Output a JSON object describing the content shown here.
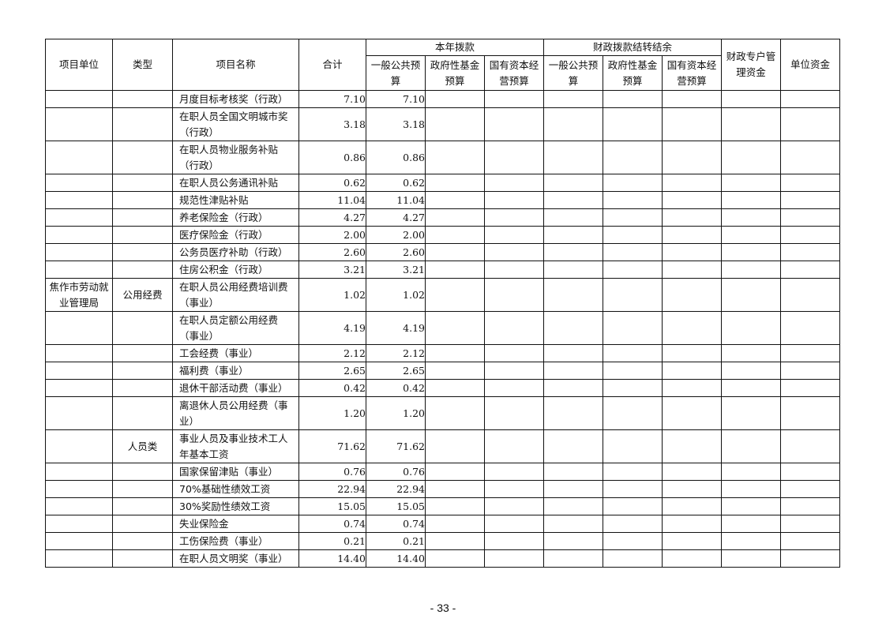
{
  "header": {
    "unit": "项目单位",
    "type": "类型",
    "name": "项目名称",
    "total": "合计",
    "group_current": "本年拨款",
    "group_carryover": "财政拨款结转结余",
    "general_budget": "一般公共预算",
    "gov_fund_budget": "政府性基金预算",
    "state_capital_budget": "国有资本经营预算",
    "carry_general_budget": "一般公共预算",
    "carry_gov_fund_budget": "政府性基金预算",
    "carry_state_capital_budget": "国有资本经营预算",
    "special_mgmt_fund": "财政专户管理资金",
    "unit_fund": "单位资金"
  },
  "rows": [
    {
      "unit": "",
      "type": "",
      "name": "月度目标考核奖（行政）",
      "total": "7.10",
      "general": "7.10"
    },
    {
      "unit": "",
      "type": "",
      "name": "在职人员全国文明城市奖（行政）",
      "total": "3.18",
      "general": "3.18"
    },
    {
      "unit": "",
      "type": "",
      "name": "在职人员物业服务补贴（行政）",
      "total": "0.86",
      "general": "0.86"
    },
    {
      "unit": "",
      "type": "",
      "name": "在职人员公务通讯补贴",
      "total": "0.62",
      "general": "0.62"
    },
    {
      "unit": "",
      "type": "",
      "name": "规范性津贴补贴",
      "total": "11.04",
      "general": "11.04"
    },
    {
      "unit": "",
      "type": "",
      "name": "养老保险金（行政）",
      "total": "4.27",
      "general": "4.27"
    },
    {
      "unit": "",
      "type": "",
      "name": "医疗保险金（行政）",
      "total": "2.00",
      "general": "2.00"
    },
    {
      "unit": "",
      "type": "",
      "name": "公务员医疗补助（行政）",
      "total": "2.60",
      "general": "2.60"
    },
    {
      "unit": "",
      "type": "",
      "name": "住房公积金（行政）",
      "total": "3.21",
      "general": "3.21"
    },
    {
      "unit": "焦作市劳动就业管理局",
      "type": "公用经费",
      "name": "在职人员公用经费培训费（事业）",
      "total": "1.02",
      "general": "1.02"
    },
    {
      "unit": "",
      "type": "",
      "name": "在职人员定额公用经费（事业）",
      "total": "4.19",
      "general": "4.19"
    },
    {
      "unit": "",
      "type": "",
      "name": "工会经费（事业）",
      "total": "2.12",
      "general": "2.12"
    },
    {
      "unit": "",
      "type": "",
      "name": "福利费（事业）",
      "total": "2.65",
      "general": "2.65"
    },
    {
      "unit": "",
      "type": "",
      "name": "退休干部活动费（事业）",
      "total": "0.42",
      "general": "0.42"
    },
    {
      "unit": "",
      "type": "",
      "name": "离退休人员公用经费（事业）",
      "total": "1.20",
      "general": "1.20"
    },
    {
      "unit": "",
      "type": "人员类",
      "name": "事业人员及事业技术工人年基本工资",
      "total": "71.62",
      "general": "71.62"
    },
    {
      "unit": "",
      "type": "",
      "name": "国家保留津贴（事业）",
      "total": "0.76",
      "general": "0.76"
    },
    {
      "unit": "",
      "type": "",
      "name": "70%基础性绩效工资",
      "total": "22.94",
      "general": "22.94"
    },
    {
      "unit": "",
      "type": "",
      "name": "30%奖励性绩效工资",
      "total": "15.05",
      "general": "15.05"
    },
    {
      "unit": "",
      "type": "",
      "name": "失业保险金",
      "total": "0.74",
      "general": "0.74"
    },
    {
      "unit": "",
      "type": "",
      "name": "工伤保险费（事业）",
      "total": "0.21",
      "general": "0.21"
    },
    {
      "unit": "",
      "type": "",
      "name": "在职人员文明奖（事业）",
      "total": "14.40",
      "general": "14.40"
    }
  ],
  "footer": {
    "page_number": "- 33 -"
  }
}
